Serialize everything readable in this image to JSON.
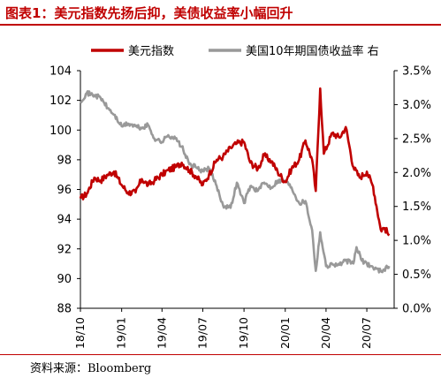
{
  "figure": {
    "title": "图表1：美元指数先扬后抑，美债收益率小幅回升",
    "source": "资料来源：Bloomberg"
  },
  "chart_data": {
    "type": "line",
    "legend": [
      {
        "name": "美元指数",
        "color": "#c00000"
      },
      {
        "name": "美国10年期国债收益率 右",
        "color": "#999999"
      }
    ],
    "legend_placement": "top",
    "x_range": [
      "2018-10",
      "2020-08"
    ],
    "x_ticks": [
      "18/10",
      "19/01",
      "19/04",
      "19/07",
      "19/10",
      "20/01",
      "20/04",
      "20/07"
    ],
    "y_left": {
      "min": 88,
      "max": 104,
      "ticks": [
        "88",
        "90",
        "92",
        "94",
        "96",
        "98",
        "100",
        "102",
        "104"
      ]
    },
    "y_right": {
      "min": 0,
      "max": 3.5,
      "ticks": [
        "0.0%",
        "0.5%",
        "1.0%",
        "1.5%",
        "2.0%",
        "2.5%",
        "3.0%",
        "3.5%"
      ]
    },
    "grid": false,
    "series": [
      {
        "name": "美元指数",
        "axis": "left",
        "color": "#c00000",
        "points": [
          [
            "2018-10-01",
            95.4
          ],
          [
            "2018-10-15",
            95.7
          ],
          [
            "2018-11-01",
            96.8
          ],
          [
            "2018-11-15",
            96.6
          ],
          [
            "2018-12-01",
            97.0
          ],
          [
            "2018-12-15",
            97.2
          ],
          [
            "2019-01-01",
            96.3
          ],
          [
            "2019-01-15",
            95.8
          ],
          [
            "2019-02-01",
            95.8
          ],
          [
            "2019-02-15",
            96.7
          ],
          [
            "2019-03-01",
            96.3
          ],
          [
            "2019-03-15",
            96.6
          ],
          [
            "2019-04-01",
            97.0
          ],
          [
            "2019-04-15",
            97.3
          ],
          [
            "2019-05-01",
            97.5
          ],
          [
            "2019-05-15",
            97.8
          ],
          [
            "2019-06-01",
            97.3
          ],
          [
            "2019-06-15",
            96.9
          ],
          [
            "2019-07-01",
            96.3
          ],
          [
            "2019-07-15",
            97.0
          ],
          [
            "2019-08-01",
            98.0
          ],
          [
            "2019-08-15",
            98.2
          ],
          [
            "2019-09-01",
            98.8
          ],
          [
            "2019-09-15",
            99.1
          ],
          [
            "2019-10-01",
            99.2
          ],
          [
            "2019-10-15",
            97.8
          ],
          [
            "2019-11-01",
            97.4
          ],
          [
            "2019-11-15",
            98.3
          ],
          [
            "2019-12-01",
            97.9
          ],
          [
            "2019-12-15",
            97.2
          ],
          [
            "2020-01-01",
            96.5
          ],
          [
            "2020-01-15",
            97.4
          ],
          [
            "2020-02-01",
            98.0
          ],
          [
            "2020-02-15",
            99.3
          ],
          [
            "2020-03-01",
            98.0
          ],
          [
            "2020-03-09",
            95.9
          ],
          [
            "2020-03-19",
            102.8
          ],
          [
            "2020-03-27",
            98.4
          ],
          [
            "2020-04-15",
            99.8
          ],
          [
            "2020-05-01",
            99.5
          ],
          [
            "2020-05-15",
            100.2
          ],
          [
            "2020-06-01",
            97.5
          ],
          [
            "2020-06-15",
            96.8
          ],
          [
            "2020-07-01",
            97.2
          ],
          [
            "2020-07-15",
            96.2
          ],
          [
            "2020-08-01",
            93.3
          ],
          [
            "2020-08-10",
            93.4
          ],
          [
            "2020-08-20",
            92.9
          ]
        ]
      },
      {
        "name": "美国10年期国债收益率 右",
        "axis": "right",
        "color": "#999999",
        "points": [
          [
            "2018-10-01",
            3.05
          ],
          [
            "2018-10-15",
            3.17
          ],
          [
            "2018-11-01",
            3.14
          ],
          [
            "2018-11-15",
            3.1
          ],
          [
            "2018-12-01",
            2.95
          ],
          [
            "2018-12-15",
            2.85
          ],
          [
            "2019-01-01",
            2.68
          ],
          [
            "2019-01-15",
            2.72
          ],
          [
            "2019-02-01",
            2.68
          ],
          [
            "2019-02-15",
            2.65
          ],
          [
            "2019-03-01",
            2.7
          ],
          [
            "2019-03-15",
            2.5
          ],
          [
            "2019-04-01",
            2.45
          ],
          [
            "2019-04-15",
            2.55
          ],
          [
            "2019-05-01",
            2.5
          ],
          [
            "2019-05-15",
            2.38
          ],
          [
            "2019-06-01",
            2.12
          ],
          [
            "2019-06-15",
            2.08
          ],
          [
            "2019-07-01",
            2.02
          ],
          [
            "2019-07-15",
            2.06
          ],
          [
            "2019-08-01",
            1.8
          ],
          [
            "2019-08-15",
            1.52
          ],
          [
            "2019-09-01",
            1.48
          ],
          [
            "2019-09-15",
            1.85
          ],
          [
            "2019-10-01",
            1.55
          ],
          [
            "2019-10-15",
            1.8
          ],
          [
            "2019-11-01",
            1.73
          ],
          [
            "2019-11-15",
            1.85
          ],
          [
            "2019-12-01",
            1.78
          ],
          [
            "2019-12-15",
            1.88
          ],
          [
            "2020-01-01",
            1.88
          ],
          [
            "2020-01-15",
            1.78
          ],
          [
            "2020-02-01",
            1.55
          ],
          [
            "2020-02-15",
            1.58
          ],
          [
            "2020-03-01",
            1.15
          ],
          [
            "2020-03-09",
            0.55
          ],
          [
            "2020-03-19",
            1.12
          ],
          [
            "2020-04-01",
            0.62
          ],
          [
            "2020-04-15",
            0.65
          ],
          [
            "2020-05-01",
            0.64
          ],
          [
            "2020-05-15",
            0.7
          ],
          [
            "2020-06-01",
            0.66
          ],
          [
            "2020-06-08",
            0.9
          ],
          [
            "2020-06-20",
            0.7
          ],
          [
            "2020-07-01",
            0.66
          ],
          [
            "2020-07-15",
            0.6
          ],
          [
            "2020-08-01",
            0.55
          ],
          [
            "2020-08-20",
            0.62
          ]
        ]
      }
    ]
  }
}
